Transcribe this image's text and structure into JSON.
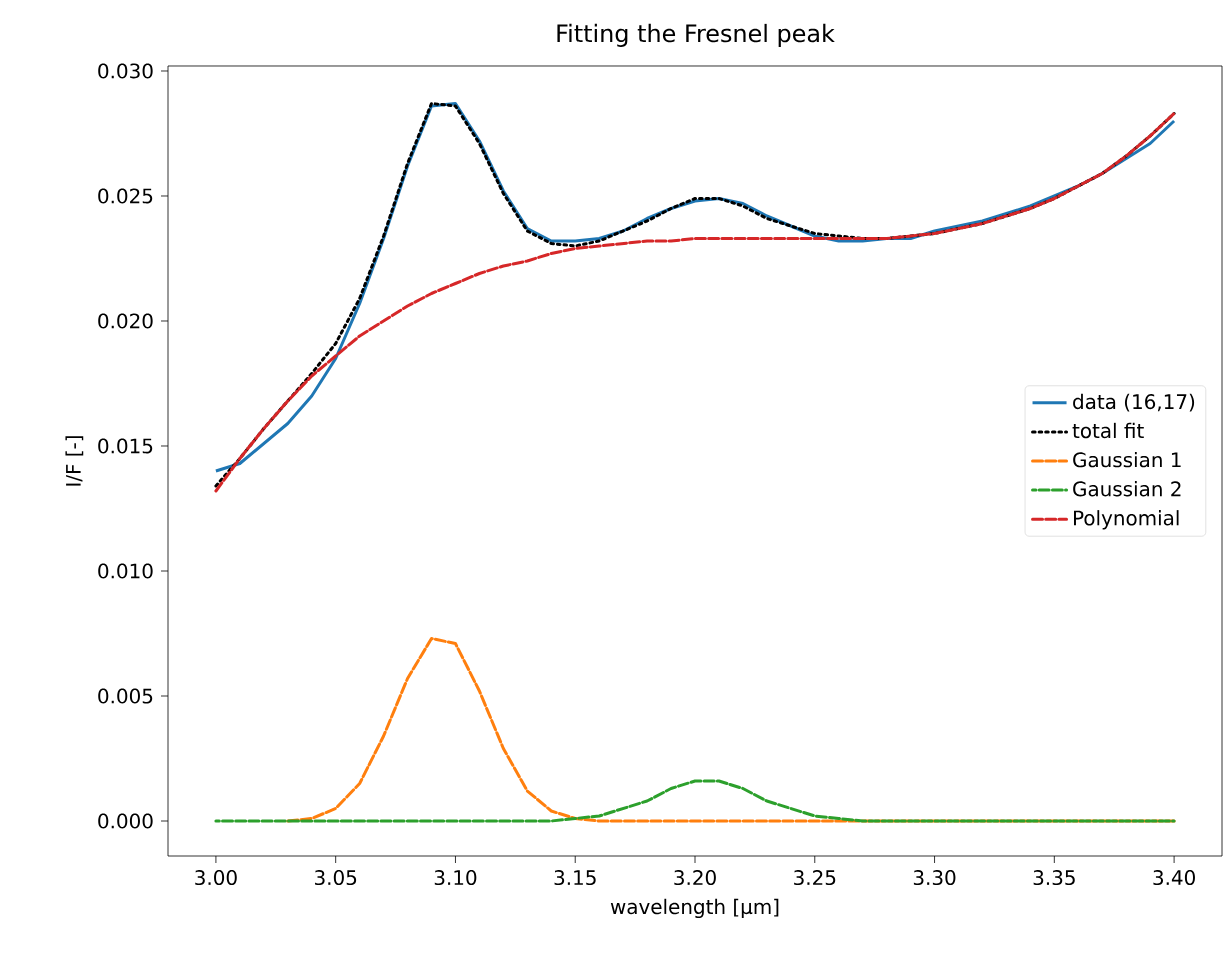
{
  "chart_data": {
    "type": "line",
    "title": "Fitting the Fresnel peak",
    "xlabel": "wavelength [μm]",
    "ylabel": "I/F [-]",
    "x": [
      3.0,
      3.01,
      3.02,
      3.03,
      3.04,
      3.05,
      3.06,
      3.07,
      3.08,
      3.09,
      3.1,
      3.11,
      3.12,
      3.13,
      3.14,
      3.15,
      3.16,
      3.17,
      3.18,
      3.19,
      3.2,
      3.21,
      3.22,
      3.23,
      3.24,
      3.25,
      3.26,
      3.27,
      3.28,
      3.29,
      3.3,
      3.31,
      3.32,
      3.33,
      3.34,
      3.35,
      3.36,
      3.37,
      3.38,
      3.39,
      3.4
    ],
    "series": [
      {
        "name": "data (16,17)",
        "color": "#1f77b4",
        "line_style": "solid",
        "values": [
          0.014,
          0.0143,
          0.0151,
          0.0159,
          0.017,
          0.0185,
          0.0207,
          0.0233,
          0.0262,
          0.0286,
          0.0287,
          0.0272,
          0.0252,
          0.0237,
          0.0232,
          0.0232,
          0.0233,
          0.0236,
          0.0241,
          0.0245,
          0.0248,
          0.0249,
          0.0247,
          0.0242,
          0.0238,
          0.0234,
          0.0232,
          0.0232,
          0.0233,
          0.0233,
          0.0236,
          0.0238,
          0.024,
          0.0243,
          0.0246,
          0.025,
          0.0254,
          0.0259,
          0.0265,
          0.0271,
          0.028
        ]
      },
      {
        "name": "total fit",
        "color": "#000000",
        "line_style": "dotted",
        "values": [
          0.0134,
          0.0145,
          0.0157,
          0.0168,
          0.0179,
          0.0191,
          0.0209,
          0.0234,
          0.0263,
          0.0287,
          0.0286,
          0.0271,
          0.0251,
          0.0236,
          0.0231,
          0.023,
          0.0232,
          0.0236,
          0.024,
          0.0245,
          0.0249,
          0.0249,
          0.0246,
          0.0241,
          0.0238,
          0.0235,
          0.0234,
          0.0233,
          0.0233,
          0.0234,
          0.0235,
          0.0237,
          0.0239,
          0.0242,
          0.0245,
          0.0249,
          0.0254,
          0.0259,
          0.0266,
          0.0274,
          0.0283
        ]
      },
      {
        "name": "Gaussian 1",
        "color": "#ff7f0e",
        "line_style": "dashed",
        "values": [
          null,
          null,
          null,
          0,
          0.0001,
          0.0005,
          0.0015,
          0.0034,
          0.0057,
          0.0073,
          0.0071,
          0.0052,
          0.0029,
          0.0012,
          0.0004,
          0.0001,
          0,
          0,
          0,
          0,
          0,
          0,
          0,
          0,
          0,
          0,
          0,
          0,
          0,
          0,
          0,
          0,
          0,
          0,
          0,
          0,
          0,
          0,
          0,
          0,
          0
        ]
      },
      {
        "name": "Gaussian 2",
        "color": "#2ca02c",
        "line_style": "dashed",
        "values": [
          0,
          0,
          0,
          0,
          0,
          0,
          0,
          0,
          0,
          0,
          0,
          0,
          0,
          0,
          0,
          0.0001,
          0.0002,
          0.0005,
          0.0008,
          0.0013,
          0.0016,
          0.0016,
          0.0013,
          0.0008,
          0.0005,
          0.0002,
          0.0001,
          0,
          0,
          0,
          0,
          0,
          0,
          0,
          0,
          0,
          0,
          0,
          0,
          0,
          0
        ]
      },
      {
        "name": "Polynomial",
        "color": "#d62728",
        "line_style": "dashed",
        "values": [
          0.0132,
          0.0145,
          0.0157,
          0.0168,
          0.0178,
          0.0186,
          0.0194,
          0.02,
          0.0206,
          0.0211,
          0.0215,
          0.0219,
          0.0222,
          0.0224,
          0.0227,
          0.0229,
          0.023,
          0.0231,
          0.0232,
          0.0232,
          0.0233,
          0.0233,
          0.0233,
          0.0233,
          0.0233,
          0.0233,
          0.0233,
          0.0233,
          0.0233,
          0.0234,
          0.0235,
          0.0237,
          0.0239,
          0.0242,
          0.0245,
          0.0249,
          0.0254,
          0.0259,
          0.0266,
          0.0274,
          0.0283
        ]
      }
    ],
    "xlim": [
      2.98,
      3.42
    ],
    "ylim": [
      -0.0014,
      0.0302
    ],
    "xticks": [
      {
        "value": 3.0,
        "label": "3.00"
      },
      {
        "value": 3.05,
        "label": "3.05"
      },
      {
        "value": 3.1,
        "label": "3.10"
      },
      {
        "value": 3.15,
        "label": "3.15"
      },
      {
        "value": 3.2,
        "label": "3.20"
      },
      {
        "value": 3.25,
        "label": "3.25"
      },
      {
        "value": 3.3,
        "label": "3.30"
      },
      {
        "value": 3.35,
        "label": "3.35"
      },
      {
        "value": 3.4,
        "label": "3.40"
      }
    ],
    "yticks": [
      {
        "value": 0,
        "label": "0.000"
      },
      {
        "value": 0.005,
        "label": "0.005"
      },
      {
        "value": 0.01,
        "label": "0.010"
      },
      {
        "value": 0.015,
        "label": "0.015"
      },
      {
        "value": 0.02,
        "label": "0.020"
      },
      {
        "value": 0.025,
        "label": "0.025"
      },
      {
        "value": 0.03,
        "label": "0.030"
      }
    ],
    "legend": "right",
    "grid": false
  }
}
